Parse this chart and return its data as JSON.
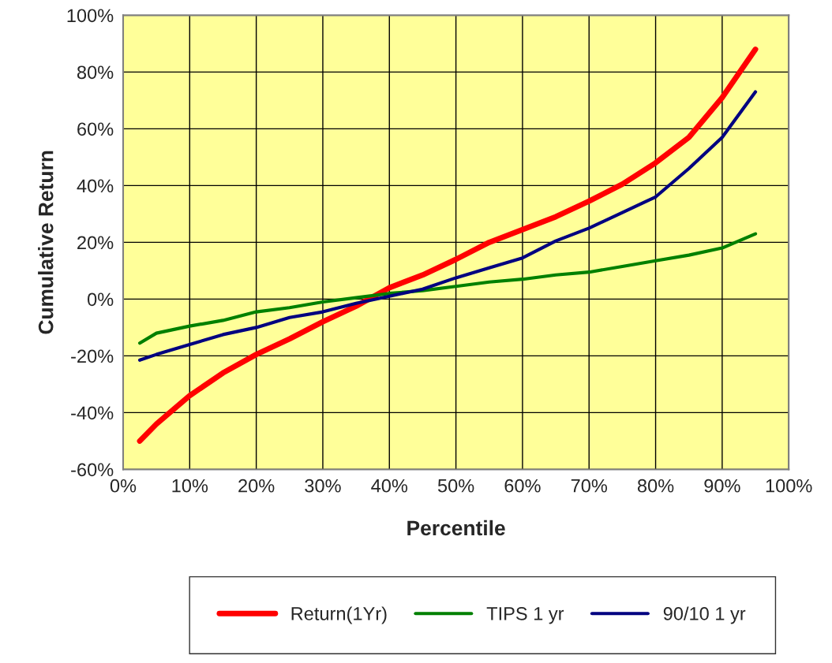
{
  "chart_data": {
    "type": "line",
    "xlabel": "Percentile",
    "ylabel": "Cumulative Return",
    "x": [
      2.5,
      5,
      10,
      15,
      20,
      25,
      30,
      35,
      40,
      45,
      50,
      55,
      60,
      65,
      70,
      75,
      80,
      85,
      90,
      95
    ],
    "series": [
      {
        "name": "Return(1Yr)",
        "color": "#ff0000",
        "values": [
          -50,
          -44,
          -34,
          -26,
          -19.5,
          -14,
          -8,
          -2.5,
          4,
          8.5,
          14,
          20,
          24.5,
          29,
          34.5,
          40.5,
          48,
          57,
          71,
          88
        ]
      },
      {
        "name": "TIPS 1 yr",
        "color": "#008000",
        "values": [
          -15.5,
          -12,
          -9.5,
          -7.5,
          -4.5,
          -3,
          -1,
          0.5,
          2,
          3,
          4.5,
          6,
          7,
          8.5,
          9.5,
          11.5,
          13.5,
          15.5,
          18,
          23
        ]
      },
      {
        "name": "90/10 1 yr",
        "color": "#000080",
        "values": [
          -21.5,
          -19.5,
          -16,
          -12.5,
          -10,
          -6.5,
          -4.5,
          -1.5,
          1,
          3.5,
          7.5,
          11,
          14.5,
          20.5,
          25,
          30.5,
          36,
          46,
          57,
          73
        ]
      }
    ],
    "xlim": [
      0,
      100
    ],
    "xticks": [
      {
        "value": 0,
        "label": "0%"
      },
      {
        "value": 10,
        "label": "10%"
      },
      {
        "value": 20,
        "label": "20%"
      },
      {
        "value": 30,
        "label": "30%"
      },
      {
        "value": 40,
        "label": "40%"
      },
      {
        "value": 50,
        "label": "50%"
      },
      {
        "value": 60,
        "label": "60%"
      },
      {
        "value": 70,
        "label": "70%"
      },
      {
        "value": 80,
        "label": "80%"
      },
      {
        "value": 90,
        "label": "90%"
      },
      {
        "value": 100,
        "label": "100%"
      }
    ],
    "ylim": [
      -60,
      100
    ],
    "yticks": [
      {
        "value": -60,
        "label": "-60%"
      },
      {
        "value": -40,
        "label": "-40%"
      },
      {
        "value": -20,
        "label": "-20%"
      },
      {
        "value": 0,
        "label": "0%"
      },
      {
        "value": 20,
        "label": "20%"
      },
      {
        "value": 40,
        "label": "40%"
      },
      {
        "value": 60,
        "label": "60%"
      },
      {
        "value": 80,
        "label": "80%"
      },
      {
        "value": 100,
        "label": "100%"
      }
    ],
    "grid": true,
    "legend": "bottom",
    "marker": "none",
    "line_style": "solid"
  }
}
